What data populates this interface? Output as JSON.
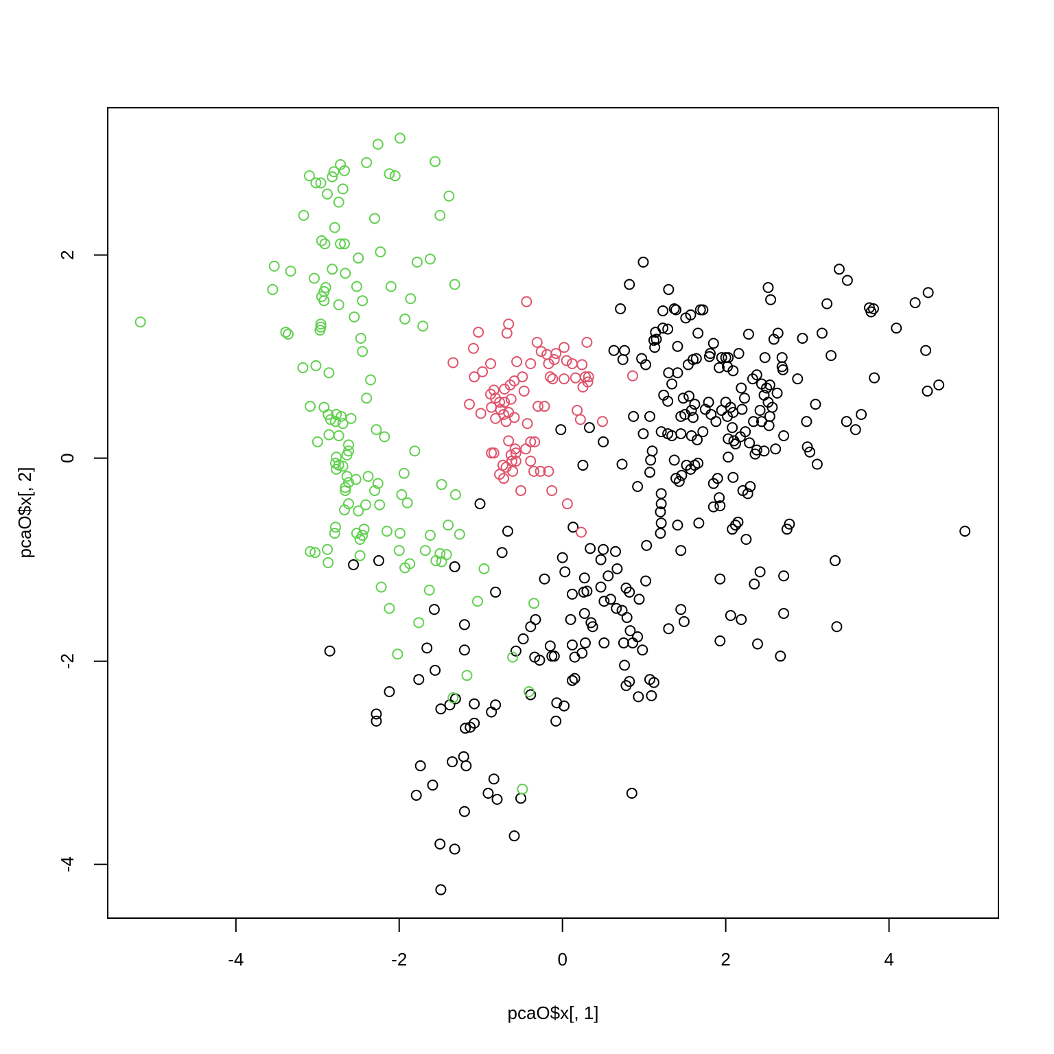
{
  "chart_data": {
    "type": "scatter",
    "xlabel": "pcaO$x[, 1]",
    "ylabel": "pcaO$x[, 2]",
    "xlim": [
      -5.57,
      5.34
    ],
    "ylim": [
      -4.53,
      3.45
    ],
    "xticks": [
      -4,
      -2,
      0,
      2,
      4
    ],
    "yticks": [
      -4,
      -2,
      0,
      2
    ],
    "series": [
      {
        "color": "#000000",
        "x": [
          0.99,
          0.82,
          0.71,
          1.3,
          1.23,
          1.37,
          1.39,
          1.69,
          1.72,
          1.51,
          1.57,
          1.23,
          1.29,
          1.14,
          1.12,
          1.15,
          1.13,
          1.41,
          1.66,
          1.85,
          0.63,
          0.76,
          0.74,
          0.97,
          1.02,
          1.3,
          1.41,
          1.6,
          1.64,
          1.54,
          1.8,
          1.81,
          1.95,
          2.0,
          2.03,
          1.92,
          2.02,
          2.09,
          2.16,
          2.28,
          2.48,
          2.52,
          2.55,
          2.59,
          2.64,
          2.69,
          2.69,
          2.7,
          2.88,
          2.94,
          3.18,
          3.24,
          3.39,
          3.49,
          3.29,
          3.76,
          3.81,
          3.78,
          4.32,
          4.48,
          4.09,
          4.45,
          4.47,
          4.61,
          3.82,
          3.66,
          3.48,
          3.59,
          3.1,
          2.99,
          3.0,
          3.03,
          3.12,
          4.93,
          2.78,
          2.75,
          2.71,
          3.34,
          2.71,
          3.36,
          2.67,
          2.39,
          2.42,
          2.35,
          2.06,
          2.19,
          1.93,
          1.93,
          2.25,
          2.08,
          2.15,
          2.12,
          1.92,
          1.93,
          1.85,
          1.85,
          1.9,
          2.09,
          2.21,
          2.27,
          2.3,
          2.03,
          1.67,
          1.41,
          1.45,
          1.45,
          1.49,
          1.3,
          1.02,
          1.03,
          1.21,
          1.21,
          1.2,
          1.21,
          1.2,
          0.92,
          0.73,
          0.5,
          0.33,
          -0.02,
          0.25,
          0.87,
          1.07,
          0.99,
          1.21,
          1.29,
          1.34,
          1.45,
          1.58,
          1.72,
          1.65,
          1.1,
          1.08,
          1.07,
          1.37,
          1.52,
          1.57,
          1.62,
          1.66,
          1.39,
          1.43,
          1.46,
          1.24,
          1.29,
          1.34,
          1.45,
          1.5,
          1.55,
          1.48,
          1.62,
          1.58,
          1.6,
          1.75,
          1.82,
          1.79,
          1.88,
          2.0,
          1.95,
          2.06,
          2.09,
          2.02,
          2.08,
          2.2,
          2.23,
          2.19,
          2.33,
          2.38,
          2.44,
          2.5,
          2.54,
          2.47,
          2.42,
          2.44,
          2.53,
          2.34,
          2.24,
          2.29,
          2.1,
          2.12,
          2.03,
          2.38,
          2.47,
          2.61,
          2.71,
          2.18,
          2.36,
          2.57,
          2.54,
          2.63,
          2.52,
          -1.01,
          -0.67,
          -0.74,
          -0.82,
          0.13,
          0.34,
          0.5,
          0.0,
          0.03,
          0.65,
          0.47,
          0.67,
          0.27,
          0.56,
          0.47,
          0.26,
          0.12,
          0.3,
          0.51,
          0.59,
          0.78,
          0.82,
          0.94,
          0.66,
          0.73,
          0.79,
          0.27,
          0.1,
          0.35,
          0.37,
          0.83,
          0.92,
          0.86,
          0.75,
          0.98,
          0.51,
          0.28,
          0.12,
          0.24,
          0.15,
          -0.22,
          -0.33,
          -0.39,
          -0.48,
          -0.57,
          -0.34,
          -0.28,
          -0.15,
          -0.13,
          -0.1,
          0.76,
          0.78,
          0.82,
          1.07,
          1.12,
          1.09,
          0.93,
          0.12,
          0.15,
          -0.07,
          0.02,
          -0.08,
          -0.39,
          -0.82,
          -0.87,
          -1.08,
          -1.19,
          -1.13,
          -1.08,
          -1.31,
          -1.49,
          -1.38,
          -1.2,
          -1.2,
          -1.32,
          -1.66,
          -1.56,
          -1.57,
          -1.76,
          -2.12,
          -2.28,
          -2.28,
          -2.56,
          -2.25,
          -2.85,
          -1.21,
          -1.18,
          -1.35,
          -1.74,
          -1.59,
          -1.79,
          -1.2,
          -0.84,
          -0.91,
          -0.8,
          -0.51,
          -0.59,
          -1.5,
          -1.32,
          -1.49,
          0.85
        ],
        "y": [
          1.93,
          1.71,
          1.47,
          1.66,
          1.45,
          1.47,
          1.46,
          1.46,
          1.46,
          1.38,
          1.41,
          1.28,
          1.27,
          1.24,
          1.16,
          1.17,
          1.09,
          1.1,
          1.23,
          1.13,
          1.06,
          1.06,
          0.97,
          0.98,
          0.92,
          0.84,
          0.84,
          0.97,
          0.98,
          0.92,
          1.0,
          1.03,
          0.99,
          0.99,
          0.99,
          0.89,
          0.9,
          0.86,
          1.03,
          1.22,
          0.99,
          1.68,
          1.56,
          1.17,
          1.23,
          0.99,
          0.9,
          0.87,
          0.78,
          1.18,
          1.23,
          1.52,
          1.86,
          1.75,
          1.01,
          1.48,
          1.47,
          1.44,
          1.53,
          1.63,
          1.28,
          1.06,
          0.66,
          0.72,
          0.79,
          0.43,
          0.36,
          0.28,
          0.53,
          0.36,
          0.11,
          0.06,
          -0.06,
          -0.72,
          -0.65,
          -0.7,
          -1.16,
          -1.01,
          -1.53,
          -1.66,
          -1.95,
          -1.83,
          -1.12,
          -1.24,
          -1.55,
          -1.59,
          -1.8,
          -1.19,
          -0.8,
          -0.7,
          -0.63,
          -0.66,
          -0.39,
          -0.47,
          -0.48,
          -0.25,
          -0.2,
          -0.19,
          -0.32,
          -0.35,
          -0.28,
          0.01,
          -0.64,
          -0.66,
          -0.91,
          -1.49,
          -1.61,
          -1.68,
          -1.21,
          -0.86,
          -0.35,
          -0.45,
          -0.53,
          -0.64,
          -0.74,
          -0.28,
          -0.06,
          0.16,
          0.3,
          0.28,
          -0.07,
          0.41,
          0.41,
          0.24,
          0.26,
          0.24,
          0.22,
          0.24,
          0.22,
          0.26,
          0.18,
          0.07,
          -0.02,
          -0.14,
          -0.02,
          -0.07,
          -0.11,
          -0.07,
          -0.05,
          -0.2,
          -0.23,
          -0.17,
          0.62,
          0.56,
          0.73,
          0.41,
          0.43,
          0.61,
          0.59,
          0.53,
          0.47,
          0.4,
          0.48,
          0.43,
          0.55,
          0.36,
          0.55,
          0.47,
          0.5,
          0.45,
          0.41,
          0.3,
          0.48,
          0.59,
          0.69,
          0.78,
          0.82,
          0.73,
          0.69,
          0.72,
          0.62,
          0.47,
          0.36,
          0.32,
          0.36,
          0.26,
          0.15,
          0.17,
          0.14,
          0.19,
          0.08,
          0.07,
          0.09,
          0.22,
          0.21,
          0.04,
          0.5,
          0.41,
          0.64,
          0.55,
          -0.45,
          -0.72,
          -0.93,
          -1.32,
          -0.68,
          -0.89,
          -0.9,
          -0.98,
          -1.12,
          -0.92,
          -1.0,
          -1.09,
          -1.18,
          -1.16,
          -1.27,
          -1.32,
          -1.34,
          -1.31,
          -1.41,
          -1.39,
          -1.28,
          -1.32,
          -1.39,
          -1.48,
          -1.5,
          -1.57,
          -1.53,
          -1.59,
          -1.62,
          -1.66,
          -1.7,
          -1.76,
          -1.82,
          -1.82,
          -1.89,
          -1.82,
          -1.82,
          -1.84,
          -1.92,
          -1.96,
          -1.19,
          -1.59,
          -1.66,
          -1.78,
          -1.9,
          -1.96,
          -1.99,
          -1.85,
          -1.95,
          -1.95,
          -2.04,
          -2.24,
          -2.2,
          -2.18,
          -2.21,
          -2.34,
          -2.35,
          -2.19,
          -2.17,
          -2.41,
          -2.44,
          -2.59,
          -2.33,
          -2.43,
          -2.5,
          -2.42,
          -2.66,
          -2.65,
          -2.61,
          -2.37,
          -2.47,
          -2.43,
          -1.89,
          -1.64,
          -1.07,
          -1.87,
          -2.09,
          -1.49,
          -2.18,
          -2.3,
          -2.52,
          -2.59,
          -1.05,
          -1.01,
          -1.9,
          -2.94,
          -3.03,
          -2.99,
          -3.03,
          -3.22,
          -3.32,
          -3.48,
          -3.16,
          -3.3,
          -3.36,
          -3.35,
          -3.72,
          -3.8,
          -3.85,
          -4.25,
          -3.3
        ]
      },
      {
        "color": "#DF536B",
        "x": [
          -0.44,
          -0.66,
          -0.68,
          -1.03,
          -1.09,
          -1.34,
          -0.88,
          -1.08,
          -0.98,
          -0.56,
          -0.39,
          -0.31,
          -0.26,
          -0.19,
          -0.08,
          0.02,
          -0.1,
          -0.17,
          0.05,
          0.12,
          0.3,
          0.24,
          -0.15,
          -0.12,
          0.02,
          0.16,
          0.28,
          0.32,
          0.31,
          0.25,
          0.18,
          0.22,
          0.49,
          -0.49,
          -0.59,
          -0.64,
          -0.71,
          -0.47,
          -0.84,
          -0.88,
          -0.82,
          -0.77,
          -0.71,
          -0.63,
          -0.87,
          -0.76,
          -0.66,
          -0.72,
          -0.82,
          -0.69,
          -0.59,
          -0.43,
          -1.0,
          -1.14,
          -0.3,
          -0.22,
          -0.66,
          -0.39,
          -0.34,
          -0.45,
          -0.58,
          -0.57,
          -0.63,
          -0.87,
          -0.84,
          -0.62,
          -0.57,
          -0.39,
          -0.73,
          -0.69,
          -0.61,
          -0.77,
          -0.72,
          -0.35,
          -0.27,
          -0.17,
          -0.51,
          -0.13,
          0.06,
          0.23,
          0.86
        ],
        "y": [
          1.54,
          1.32,
          1.23,
          1.24,
          1.08,
          0.94,
          0.93,
          0.8,
          0.85,
          0.95,
          0.93,
          1.14,
          1.05,
          1.02,
          1.03,
          1.09,
          0.97,
          0.93,
          0.96,
          0.93,
          1.14,
          0.92,
          0.8,
          0.78,
          0.78,
          0.79,
          0.8,
          0.8,
          0.75,
          0.7,
          0.47,
          0.38,
          0.36,
          0.8,
          0.76,
          0.72,
          0.68,
          0.66,
          0.67,
          0.63,
          0.59,
          0.55,
          0.55,
          0.58,
          0.5,
          0.48,
          0.45,
          0.43,
          0.39,
          0.36,
          0.4,
          0.34,
          0.44,
          0.53,
          0.51,
          0.51,
          0.17,
          0.16,
          0.16,
          0.09,
          0.09,
          0.05,
          0.03,
          0.05,
          0.05,
          -0.03,
          -0.03,
          -0.03,
          -0.07,
          -0.09,
          -0.13,
          -0.16,
          -0.2,
          -0.13,
          -0.13,
          -0.13,
          -0.32,
          -0.32,
          -0.45,
          -0.73,
          0.81
        ]
      },
      {
        "color": "#61D04F",
        "x": [
          -5.17,
          -3.53,
          -3.55,
          -3.33,
          -3.39,
          -3.36,
          -3.17,
          -3.1,
          -3.02,
          -2.96,
          -2.82,
          -2.8,
          -2.72,
          -2.67,
          -2.69,
          -2.88,
          -2.74,
          -2.79,
          -2.95,
          -2.91,
          -2.72,
          -2.67,
          -2.82,
          -2.66,
          -3.04,
          -2.9,
          -2.92,
          -2.95,
          -2.92,
          -2.74,
          -2.52,
          -2.45,
          -2.55,
          -2.96,
          -2.96,
          -2.97,
          -2.47,
          -2.45,
          -3.18,
          -3.02,
          -2.86,
          -2.35,
          -2.4,
          -3.09,
          -2.92,
          -2.87,
          -2.77,
          -2.71,
          -2.84,
          -2.78,
          -2.69,
          -2.59,
          -2.74,
          -2.86,
          -3.0,
          -2.62,
          -2.62,
          -2.64,
          -2.77,
          -2.78,
          -2.74,
          -2.77,
          -2.69,
          -2.64,
          -2.62,
          -2.66,
          -2.66,
          -2.62,
          -2.67,
          -2.78,
          -2.79,
          -2.53,
          -2.38,
          -2.26,
          -2.3,
          -2.41,
          -2.5,
          -2.24,
          -2.28,
          -2.18,
          -2.52,
          -2.45,
          -2.43,
          -2.48,
          -2.15,
          -1.99,
          -3.09,
          -3.03,
          -2.88,
          -2.87,
          -2.48,
          -2.0,
          -1.94,
          -1.81,
          -1.97,
          -1.9,
          -1.93,
          -1.87,
          -1.68,
          -1.62,
          -1.55,
          -1.5,
          -1.42,
          -1.48,
          -1.48,
          -1.31,
          -1.4,
          -1.26,
          -2.22,
          -1.63,
          -2.12,
          -1.76,
          -2.02,
          -0.96,
          -1.04,
          -1.17,
          -1.34,
          -0.35,
          -0.61,
          -0.41,
          -0.49,
          -2.26,
          -1.99,
          -2.4,
          -2.12,
          -2.05,
          -1.56,
          -1.39,
          -1.5,
          -2.3,
          -2.23,
          -2.5,
          -1.78,
          -1.62,
          -1.32,
          -2.1,
          -1.86,
          -1.93,
          -1.71
        ],
        "y": [
          1.34,
          1.89,
          1.66,
          1.84,
          1.24,
          1.22,
          2.39,
          2.78,
          2.71,
          2.71,
          2.77,
          2.82,
          2.89,
          2.83,
          2.65,
          2.6,
          2.52,
          2.27,
          2.14,
          2.11,
          2.11,
          2.11,
          1.86,
          1.82,
          1.77,
          1.68,
          1.64,
          1.59,
          1.55,
          1.51,
          1.69,
          1.55,
          1.39,
          1.32,
          1.29,
          1.26,
          1.18,
          1.05,
          0.89,
          0.91,
          0.84,
          0.77,
          0.59,
          0.51,
          0.5,
          0.43,
          0.43,
          0.41,
          0.38,
          0.36,
          0.34,
          0.39,
          0.22,
          0.23,
          0.16,
          0.13,
          0.07,
          0.03,
          0.01,
          -0.05,
          -0.07,
          -0.11,
          -0.08,
          -0.18,
          -0.24,
          -0.29,
          -0.32,
          -0.45,
          -0.51,
          -0.68,
          -0.74,
          -0.21,
          -0.18,
          -0.25,
          -0.32,
          -0.46,
          -0.52,
          -0.46,
          0.28,
          0.21,
          -0.74,
          -0.76,
          -0.7,
          -0.8,
          -0.72,
          -0.74,
          -0.92,
          -0.93,
          -0.9,
          -1.03,
          -0.96,
          -0.91,
          -0.15,
          0.07,
          -0.36,
          -0.44,
          -1.08,
          -1.04,
          -0.91,
          -0.76,
          -1.01,
          -0.94,
          -0.95,
          -1.02,
          -0.26,
          -0.36,
          -0.66,
          -0.75,
          -1.27,
          -1.3,
          -1.48,
          -1.62,
          -1.93,
          -1.09,
          -1.41,
          -2.14,
          -2.36,
          -1.43,
          -1.96,
          -2.3,
          -3.26,
          3.09,
          3.15,
          2.91,
          2.8,
          2.78,
          2.92,
          2.58,
          2.39,
          2.36,
          2.03,
          1.97,
          1.93,
          1.96,
          1.71,
          1.69,
          1.57,
          1.37,
          1.3
        ]
      }
    ]
  }
}
